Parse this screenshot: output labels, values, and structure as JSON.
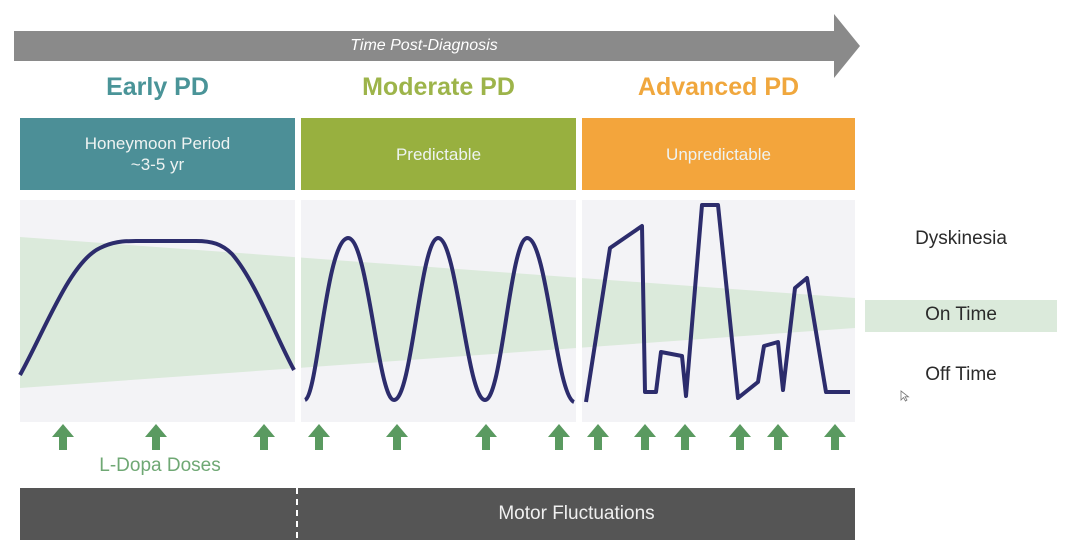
{
  "header": {
    "timeline_label": "Time Post-Diagnosis"
  },
  "stages": [
    {
      "title": "Early PD",
      "box_text": "Honeymoon Period\n~3-5 yr",
      "title_color": "#4a9498",
      "box_color": "#4c8f97"
    },
    {
      "title": "Moderate PD",
      "box_text": "Predictable",
      "title_color": "#9db44a",
      "box_color": "#98b03f"
    },
    {
      "title": "Advanced PD",
      "box_text": "Unpredictable",
      "title_color": "#f0a73d",
      "box_color": "#f3a53c"
    }
  ],
  "legend": {
    "dyskinesia": "Dyskinesia",
    "on_time": "On Time",
    "off_time": "Off Time"
  },
  "doses": {
    "label": "L-Dopa Doses",
    "arrow_color": "#5a9a60"
  },
  "footer": {
    "motor_label": "Motor Fluctuations",
    "bar_color": "#555555"
  },
  "colors": {
    "curve": "#2c2c6c",
    "on_band": "#dbeadb",
    "panel_bg": "#f3f3f6",
    "arrow": "#8a8a8a"
  }
}
